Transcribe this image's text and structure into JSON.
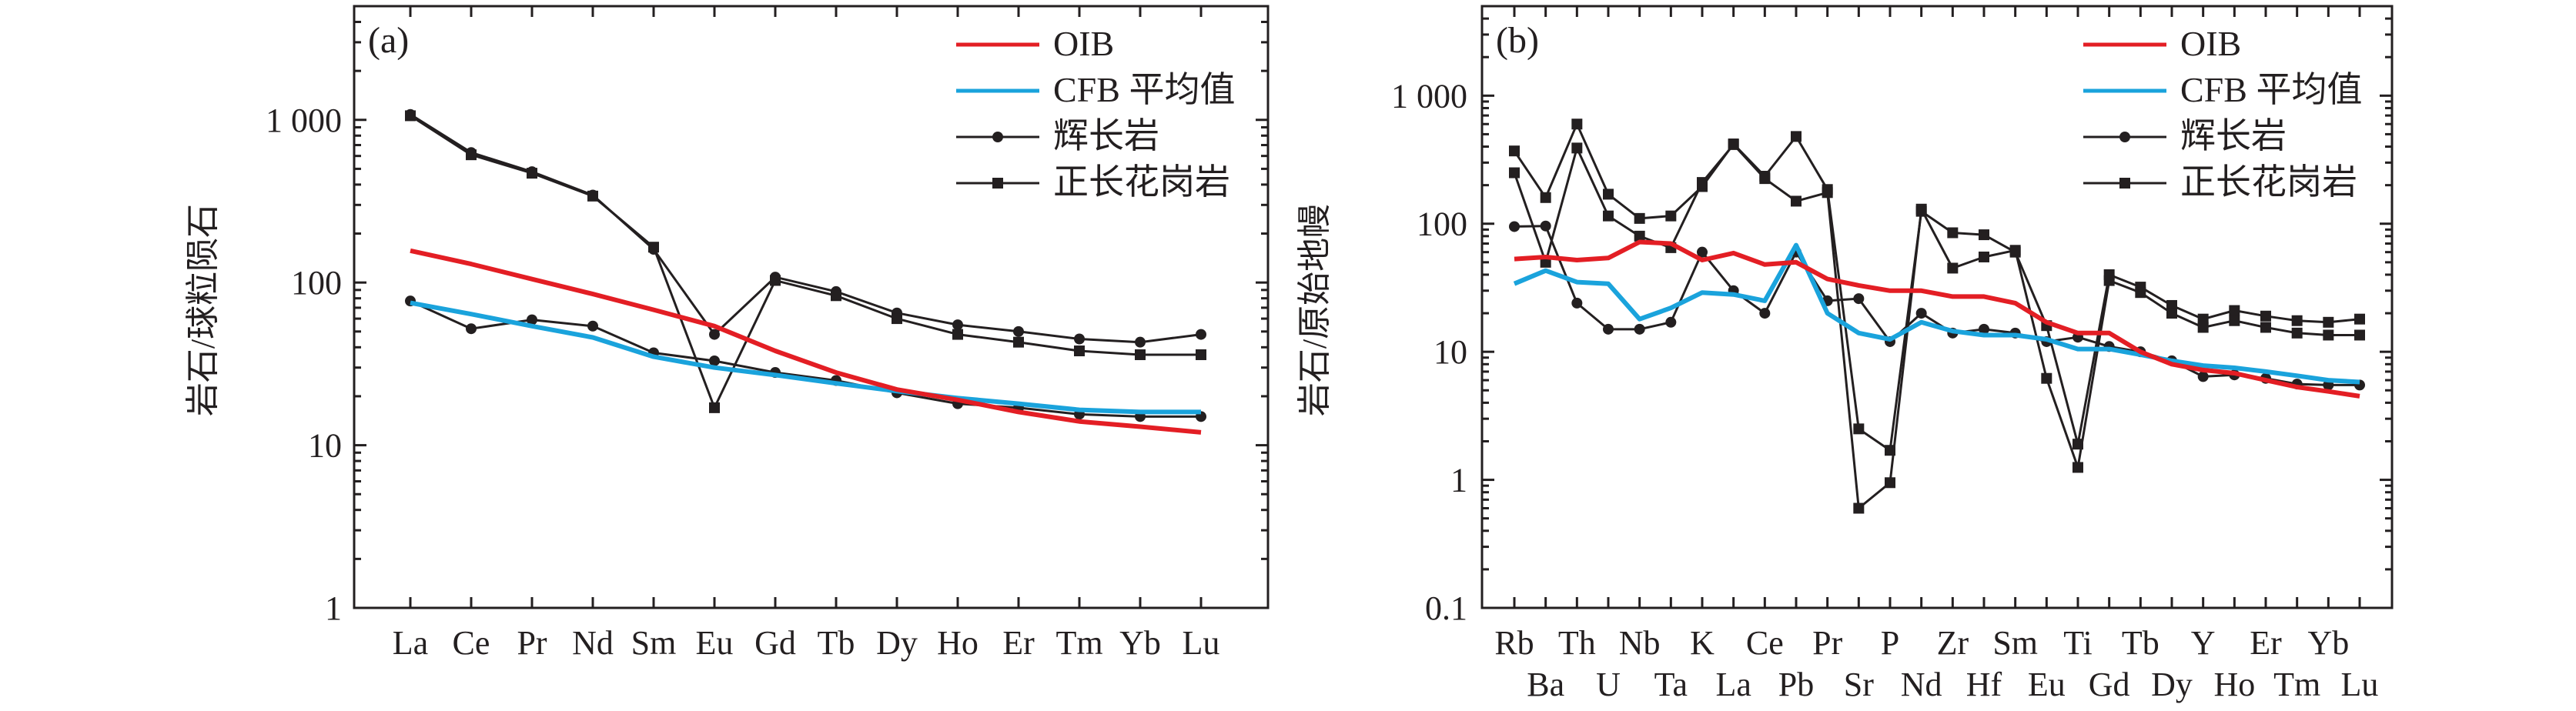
{
  "colors": {
    "oib": "#e31e24",
    "cfb": "#1aa3dc",
    "gabbro": "#231f20",
    "syenogranite": "#231f20",
    "axis": "#231f20"
  },
  "chart_data": [
    {
      "type": "line",
      "panel_label": "(a)",
      "ylabel": "岩石/球粒陨石",
      "yscale": "log",
      "ylim": [
        1,
        5000
      ],
      "yticks": [
        1,
        10,
        100,
        1000
      ],
      "ytick_labels": [
        "1",
        "10",
        "100",
        "1 000"
      ],
      "categories": [
        "La",
        "Ce",
        "Pr",
        "Nd",
        "Sm",
        "Eu",
        "Gd",
        "Tb",
        "Dy",
        "Ho",
        "Er",
        "Tm",
        "Yb",
        "Lu"
      ],
      "legend": {
        "position": "top-right",
        "entries": [
          "OIB",
          "CFB 平均值",
          "辉长岩",
          "正长花岗岩"
        ]
      },
      "series": [
        {
          "name": "OIB",
          "color_key": "oib",
          "marker": "none",
          "samples": [
            [
              157,
              130,
              105,
              85,
              68,
              54,
              38,
              28,
              22,
              19,
              16,
              14,
              13,
              12
            ]
          ]
        },
        {
          "name": "CFB 平均值",
          "color_key": "cfb",
          "marker": "none",
          "samples": [
            [
              75,
              64,
              54,
              46,
              35,
              30,
              27,
              24,
              21.5,
              19.5,
              18,
              16.5,
              16,
              16
            ]
          ]
        },
        {
          "name": "辉长岩",
          "color_key": "gabbro",
          "marker": "circle",
          "samples": [
            [
              1080,
              630,
              480,
              345,
              160,
              48,
              108,
              88,
              65,
              55,
              50,
              45,
              43,
              48
            ],
            [
              77,
              52,
              59,
              54,
              37,
              33,
              28,
              25,
              21,
              18,
              17,
              15.5,
              15,
              15
            ]
          ]
        },
        {
          "name": "正长花岗岩",
          "color_key": "syenogranite",
          "marker": "square",
          "samples": [
            [
              1060,
              610,
              470,
              340,
              165,
              17,
              103,
              83,
              60,
              48,
              43,
              38,
              36,
              36
            ]
          ]
        }
      ]
    },
    {
      "type": "line",
      "panel_label": "(b)",
      "ylabel": "岩石/原始地幔",
      "yscale": "log",
      "ylim": [
        0.1,
        5000
      ],
      "yticks": [
        0.1,
        1,
        10,
        100,
        1000
      ],
      "ytick_labels": [
        "0.1",
        "1",
        "10",
        "100",
        "1 000"
      ],
      "categories": [
        "Rb",
        "Ba",
        "Th",
        "U",
        "Nb",
        "Ta",
        "K",
        "La",
        "Ce",
        "Pb",
        "Pr",
        "Sr",
        "P",
        "Nd",
        "Zr",
        "Hf",
        "Sm",
        "Eu",
        "Ti",
        "Gd",
        "Tb",
        "Dy",
        "Y",
        "Ho",
        "Er",
        "Tm",
        "Yb",
        "Lu"
      ],
      "legend": {
        "position": "top-right",
        "entries": [
          "OIB",
          "CFB 平均值",
          "辉长岩",
          "正长花岗岩"
        ]
      },
      "series": [
        {
          "name": "OIB",
          "color_key": "oib",
          "marker": "none",
          "samples": [
            [
              53,
              55,
              52,
              54,
              72,
              70,
              52,
              59,
              48,
              50,
              37,
              33,
              30,
              30,
              27,
              27,
              24,
              17,
              14,
              14,
              10,
              8,
              7.2,
              6.8,
              6,
              5.3,
              4.9,
              4.5
            ]
          ]
        },
        {
          "name": "CFB 平均值",
          "color_key": "cfb",
          "marker": "none",
          "samples": [
            [
              34,
              43,
              35,
              34,
              18,
              22,
              29,
              28,
              25,
              68,
              20,
              14,
              12.5,
              17,
              14.5,
              13.5,
              13.5,
              12.5,
              10.5,
              10.5,
              9.5,
              8.5,
              7.8,
              7.5,
              7,
              6.5,
              6,
              5.8
            ]
          ]
        },
        {
          "name": "辉长岩",
          "color_key": "gabbro",
          "marker": "circle",
          "samples": [
            [
              95,
              96,
              24,
              15,
              15,
              17,
              60,
              30,
              20,
              60,
              25,
              26,
              12,
              20,
              14,
              15,
              14,
              12,
              13,
              11,
              10,
              8.5,
              6.4,
              6.6,
              6.2,
              5.6,
              5.5,
              5.5
            ]
          ]
        },
        {
          "name": "正长花岗岩",
          "color_key": "syenogranite",
          "marker": "square",
          "samples": [
            [
              370,
              160,
              600,
              170,
              110,
              115,
              195,
              420,
              235,
              480,
              185,
              2.5,
              1.7,
              125,
              85,
              82,
              60,
              16,
              1.9,
              40,
              32,
              23,
              18,
              21,
              19,
              17.5,
              17,
              18
            ],
            [
              250,
              50,
              390,
              115,
              80,
              65,
              210,
              415,
              225,
              150,
              175,
              0.6,
              0.95,
              130,
              45,
              55,
              62,
              6.2,
              1.25,
              36,
              29,
              20,
              15.5,
              17.5,
              15.5,
              14,
              13.5,
              13.5
            ]
          ]
        }
      ]
    }
  ]
}
